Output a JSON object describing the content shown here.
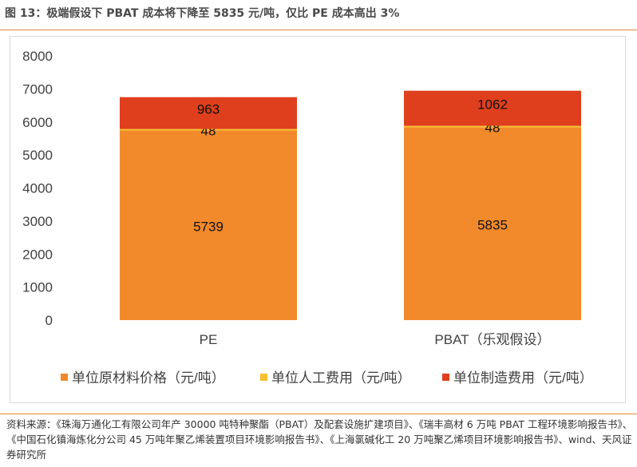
{
  "title": "图 13：极端假设下 PBAT 成本将下降至 5835 元/吨，仅比 PE 成本高出 3%",
  "source": "资料来源：《珠海万通化工有限公司年产 30000 吨特种聚酯（PBAT）及配套设施扩建项目》、《瑞丰高材 6 万吨 PBAT 工程环境影响报告书》、《中国石化镇海炼化分公司 45 万吨年聚乙烯装置项目环境影响报告书》、《上海氯碱化工 20 万吨聚乙烯项目环境影响报告书》、wind、天风证券研究所",
  "colors": {
    "accent": "#E8893A"
  },
  "chart_data": {
    "type": "bar",
    "stacked": true,
    "categories": [
      "PE",
      "PBAT（乐观假设）"
    ],
    "series": [
      {
        "name": "单位原材料价格（元/吨）",
        "values": [
          5739,
          5835
        ],
        "color": "#F28A2B"
      },
      {
        "name": "单位人工费用（元/吨）",
        "values": [
          48,
          48
        ],
        "color": "#F7BE2E"
      },
      {
        "name": "单位制造费用（元/吨）",
        "values": [
          963,
          1062
        ],
        "color": "#DF3F1D"
      }
    ],
    "ylim": [
      0,
      8000
    ],
    "yticks": [
      0,
      1000,
      2000,
      3000,
      4000,
      5000,
      6000,
      7000,
      8000
    ],
    "grid": false,
    "legend": "bottom"
  }
}
